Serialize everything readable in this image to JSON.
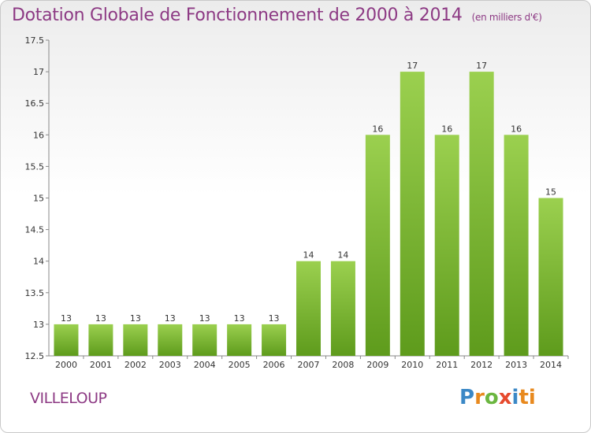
{
  "header": {
    "title": "Dotation Globale de Fonctionnement de 2000 à 2014",
    "unit": "(en milliers d'€)"
  },
  "footer": {
    "commune": "VILLELOUP",
    "logo": [
      "P",
      "r",
      "o",
      "x",
      "i",
      "ti"
    ]
  },
  "chart_data": {
    "type": "bar",
    "title": "Dotation Globale de Fonctionnement de 2000 à 2014",
    "unit": "(en milliers d'€)",
    "categories": [
      "2000",
      "2001",
      "2002",
      "2003",
      "2004",
      "2005",
      "2006",
      "2007",
      "2008",
      "2009",
      "2010",
      "2011",
      "2012",
      "2013",
      "2014"
    ],
    "values": [
      13,
      13,
      13,
      13,
      13,
      13,
      13,
      14,
      14,
      16,
      17,
      16,
      17,
      16,
      15
    ],
    "data_labels": [
      "13",
      "13",
      "13",
      "13",
      "13",
      "13",
      "13",
      "14",
      "14",
      "16",
      "17",
      "16",
      "17",
      "16",
      "15"
    ],
    "ylim": [
      12.5,
      17.5
    ],
    "yticks": [
      "12.5",
      "13",
      "13.5",
      "14",
      "14.5",
      "15",
      "15.5",
      "16",
      "16.5",
      "17",
      "17.5"
    ],
    "grid": false,
    "bar_color": "#7fbf3f",
    "title_color": "#8d3a84"
  }
}
